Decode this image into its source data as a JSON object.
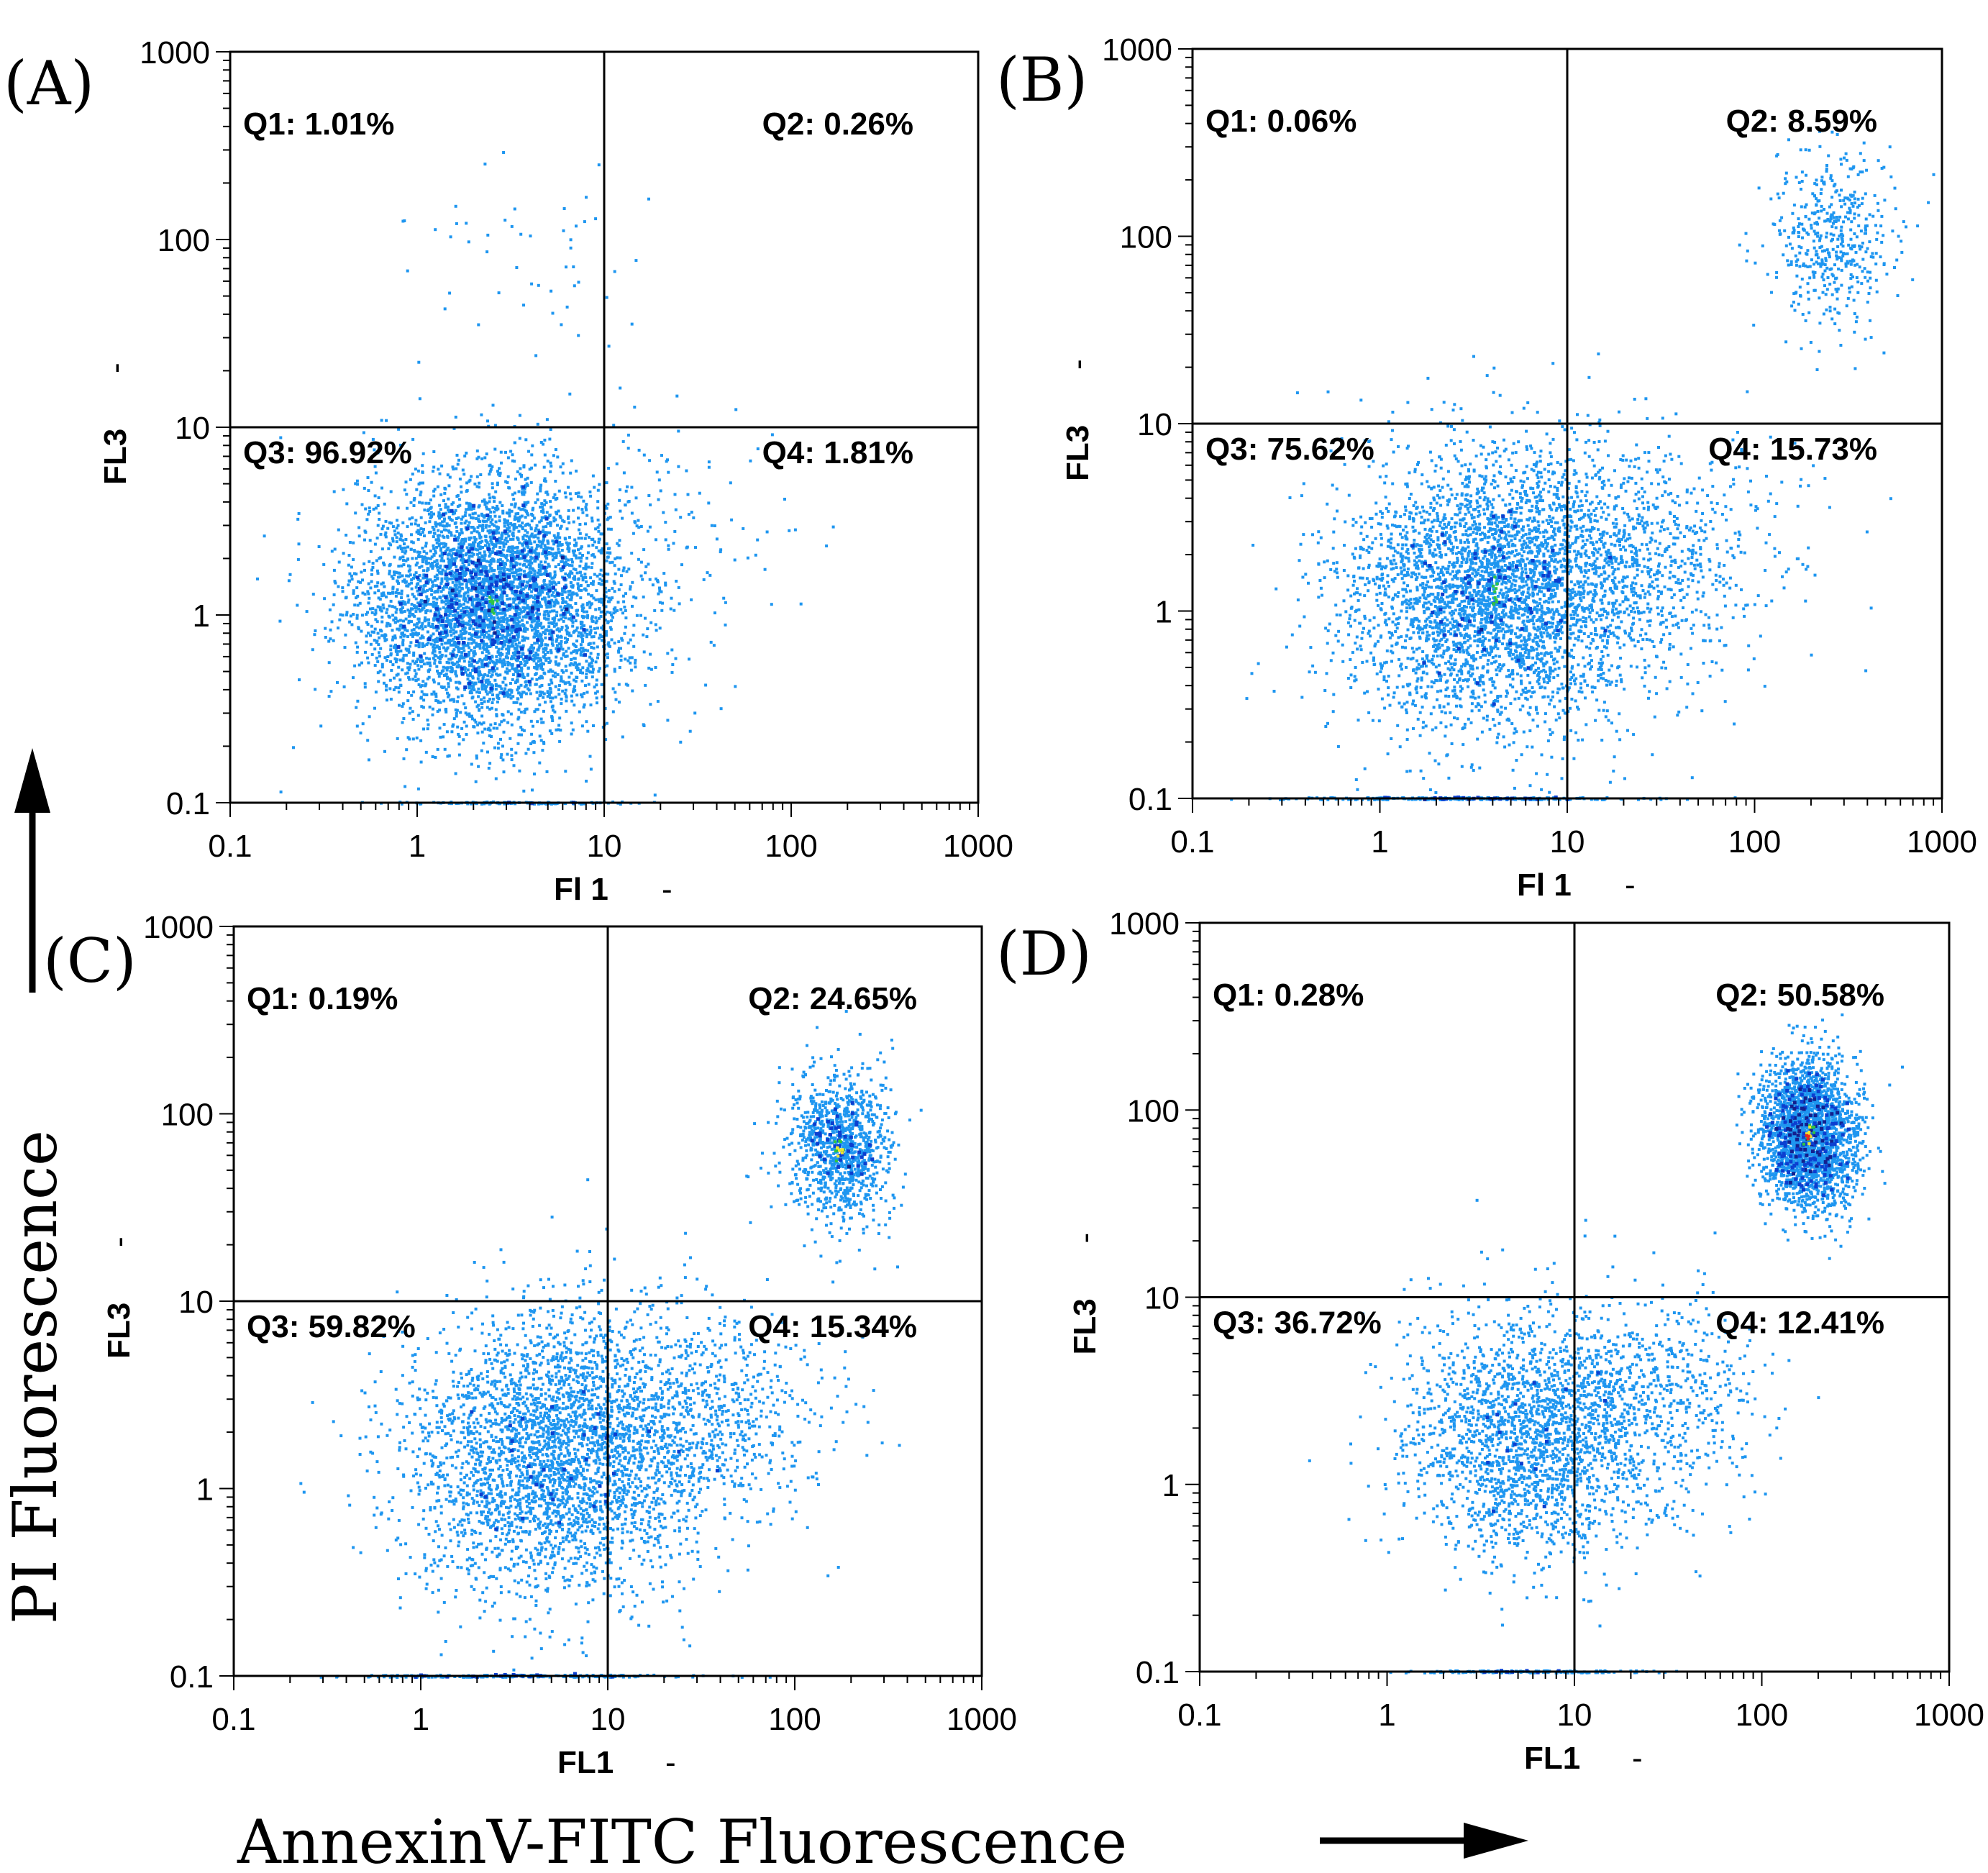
{
  "figure": {
    "y_arrow_label": "PI Fluorescence",
    "x_arrow_label": "AnnexinV-FITC Fluorescence"
  },
  "colors": {
    "background": "#ffffff",
    "axis": "#000000",
    "low_density": "#1e96f0",
    "medium_density": "#0c3fd0",
    "dense": "#13208f",
    "peak_green": "#2fc445",
    "peak_yellow": "#f2e630",
    "peak_red": "#e42a20"
  },
  "chart_data": [
    {
      "type": "scatter",
      "panel": "(A)",
      "xlabel": "Fl 1",
      "ylabel": "FL3",
      "xscale": "log",
      "yscale": "log",
      "xlim": [
        0.1,
        1000
      ],
      "ylim": [
        0.1,
        1000
      ],
      "x_ticks": [
        "0.1",
        "1",
        "10",
        "100",
        "1000"
      ],
      "y_ticks": [
        "0.1",
        "1",
        "10",
        "100",
        "1000"
      ],
      "gate": {
        "x": 10,
        "y": 10
      },
      "quadrants": [
        {
          "id": "Q1",
          "label": "Q1: 1.01%",
          "percent": 1.01
        },
        {
          "id": "Q2",
          "label": "Q2: 0.26%",
          "percent": 0.26
        },
        {
          "id": "Q3",
          "label": "Q3: 96.92%",
          "percent": 96.92
        },
        {
          "id": "Q4",
          "label": "Q4: 1.81%",
          "percent": 1.81
        }
      ],
      "populations": [
        {
          "center": [
            2.5,
            1.2
          ],
          "spread": [
            0.36,
            0.33
          ],
          "share": 0.95,
          "peak": "green"
        },
        {
          "center": [
            3.5,
            90
          ],
          "spread": [
            0.28,
            0.3
          ],
          "share": 0.01
        },
        {
          "center": [
            20,
            3
          ],
          "spread": [
            0.35,
            0.3
          ],
          "share": 0.02
        },
        {
          "center": [
            3,
            0.1
          ],
          "spread": [
            0.3,
            0.0
          ],
          "share": 0.02,
          "baseline": true
        }
      ]
    },
    {
      "type": "scatter",
      "panel": "(B)",
      "xlabel": "Fl 1",
      "ylabel": "FL3",
      "xscale": "log",
      "yscale": "log",
      "xlim": [
        0.1,
        1000
      ],
      "ylim": [
        0.1,
        1000
      ],
      "x_ticks": [
        "0.1",
        "1",
        "10",
        "100",
        "1000"
      ],
      "y_ticks": [
        "0.1",
        "1",
        "10",
        "100",
        "1000"
      ],
      "gate": {
        "x": 10,
        "y": 10
      },
      "quadrants": [
        {
          "id": "Q1",
          "label": "Q1: 0.06%",
          "percent": 0.06
        },
        {
          "id": "Q2",
          "label": "Q2: 8.59%",
          "percent": 8.59
        },
        {
          "id": "Q3",
          "label": "Q3: 75.62%",
          "percent": 75.62
        },
        {
          "id": "Q4",
          "label": "Q4: 15.73%",
          "percent": 15.73
        }
      ],
      "populations": [
        {
          "center": [
            4,
            1.3
          ],
          "spread": [
            0.4,
            0.37
          ],
          "share": 0.72,
          "peak": "green"
        },
        {
          "center": [
            25,
            2
          ],
          "spread": [
            0.38,
            0.3
          ],
          "share": 0.14
        },
        {
          "center": [
            260,
            95
          ],
          "spread": [
            0.17,
            0.24
          ],
          "share": 0.09
        },
        {
          "center": [
            3,
            0.1
          ],
          "spread": [
            0.45,
            0.0
          ],
          "share": 0.05,
          "baseline": true
        }
      ]
    },
    {
      "type": "scatter",
      "panel": "(C)",
      "xlabel": "FL1",
      "ylabel": "FL3",
      "xscale": "log",
      "yscale": "log",
      "xlim": [
        0.1,
        1000
      ],
      "ylim": [
        0.1,
        1000
      ],
      "x_ticks": [
        "0.1",
        "1",
        "10",
        "100",
        "1000"
      ],
      "y_ticks": [
        "0.1",
        "1",
        "10",
        "100",
        "1000"
      ],
      "gate": {
        "x": 10,
        "y": 10
      },
      "quadrants": [
        {
          "id": "Q1",
          "label": "Q1: 0.19%",
          "percent": 0.19
        },
        {
          "id": "Q2",
          "label": "Q2: 24.65%",
          "percent": 24.65
        },
        {
          "id": "Q3",
          "label": "Q3: 59.82%",
          "percent": 59.82
        },
        {
          "id": "Q4",
          "label": "Q4: 15.34%",
          "percent": 15.34
        }
      ],
      "populations": [
        {
          "center": [
            5,
            1.5
          ],
          "spread": [
            0.38,
            0.38
          ],
          "share": 0.6
        },
        {
          "center": [
            30,
            2.5
          ],
          "spread": [
            0.35,
            0.3
          ],
          "share": 0.15
        },
        {
          "center": [
            170,
            65
          ],
          "spread": [
            0.14,
            0.2
          ],
          "share": 0.21,
          "peak": "yellow"
        },
        {
          "center": [
            3,
            0.1
          ],
          "spread": [
            0.45,
            0.0
          ],
          "share": 0.04,
          "baseline": true
        }
      ]
    },
    {
      "type": "scatter",
      "panel": "(D)",
      "xlabel": "FL1",
      "ylabel": "FL3",
      "xscale": "log",
      "yscale": "log",
      "xlim": [
        0.1,
        1000
      ],
      "ylim": [
        0.1,
        1000
      ],
      "x_ticks": [
        "0.1",
        "1",
        "10",
        "100",
        "1000"
      ],
      "y_ticks": [
        "0.1",
        "1",
        "10",
        "100",
        "1000"
      ],
      "gate": {
        "x": 10,
        "y": 10
      },
      "quadrants": [
        {
          "id": "Q1",
          "label": "Q1: 0.28%",
          "percent": 0.28
        },
        {
          "id": "Q2",
          "label": "Q2: 50.58%",
          "percent": 50.58
        },
        {
          "id": "Q3",
          "label": "Q3: 36.72%",
          "percent": 36.72
        },
        {
          "id": "Q4",
          "label": "Q4: 12.41%",
          "percent": 12.41
        }
      ],
      "populations": [
        {
          "center": [
            6,
            1.8
          ],
          "spread": [
            0.35,
            0.33
          ],
          "share": 0.4
        },
        {
          "center": [
            25,
            3
          ],
          "spread": [
            0.32,
            0.28
          ],
          "share": 0.1
        },
        {
          "center": [
            175,
            75
          ],
          "spread": [
            0.13,
            0.2
          ],
          "share": 0.47,
          "peak": "red"
        },
        {
          "center": [
            5,
            0.1
          ],
          "spread": [
            0.35,
            0.0
          ],
          "share": 0.03,
          "baseline": true
        }
      ]
    }
  ]
}
